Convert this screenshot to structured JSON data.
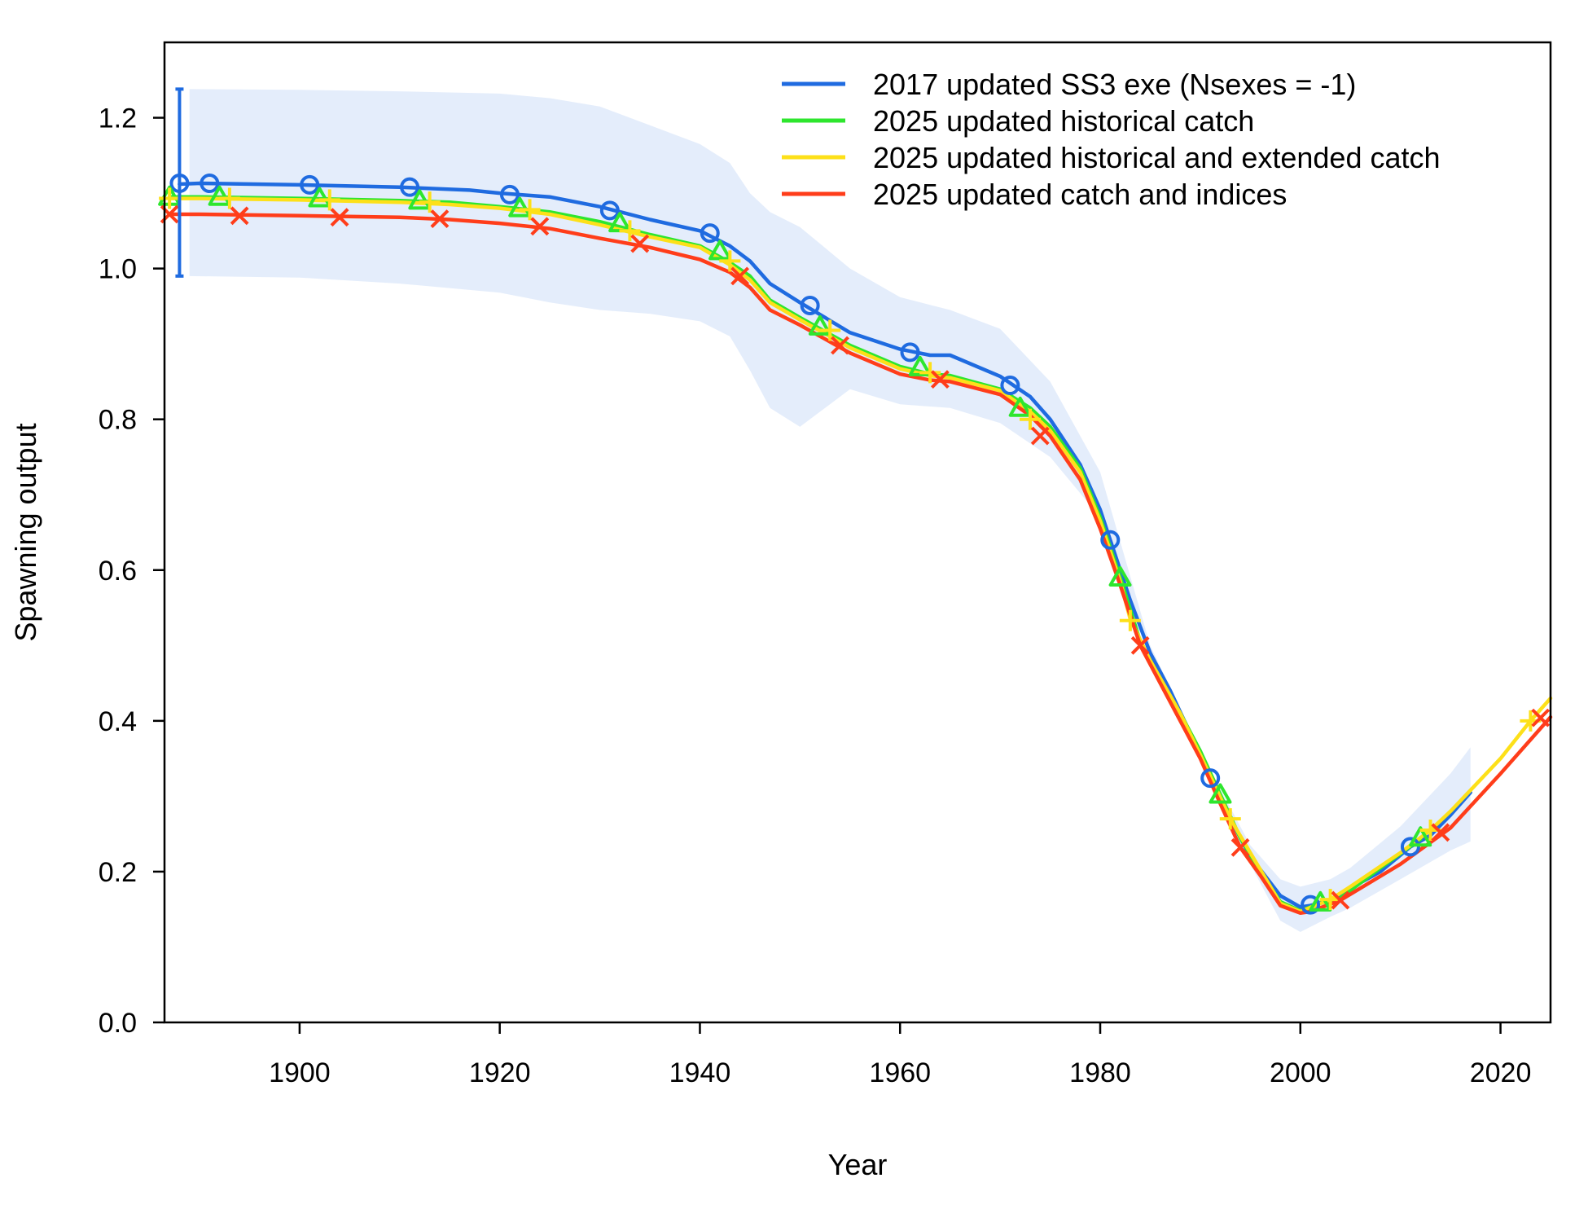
{
  "chart_data": {
    "type": "line",
    "title": "",
    "xlabel": "Year",
    "ylabel": "Spawning output",
    "xlim": [
      1886.5,
      2025
    ],
    "ylim": [
      0,
      1.3
    ],
    "grid": false,
    "legend_position": "top-right",
    "x_ticks": [
      1900,
      1920,
      1940,
      1960,
      1980,
      2000,
      2020
    ],
    "x_tick_labels": [
      "1900",
      "1920",
      "1940",
      "1960",
      "1980",
      "2000",
      "2020"
    ],
    "y_ticks": [
      0,
      0.2,
      0.4,
      0.6,
      0.8,
      1.0,
      1.2
    ],
    "y_tick_labels": [
      "0.0",
      "0.2",
      "0.4",
      "0.6",
      "0.8",
      "1.0",
      "1.2"
    ],
    "series": [
      {
        "name": "2017 updated SS3 exe (Nsexes = -1)",
        "color": "#1f6be0",
        "marker": "circle",
        "x": [
          1888,
          1890,
          1900,
          1910,
          1917,
          1920,
          1925,
          1930,
          1935,
          1940,
          1943,
          1945,
          1947,
          1950,
          1955,
          1960,
          1963,
          1965,
          1970,
          1973,
          1975,
          1978,
          1980,
          1981,
          1983,
          1985,
          1987,
          1990,
          1991,
          1993,
          1995,
          1998,
          2000,
          2001,
          2003,
          2005,
          2008,
          2010,
          2011,
          2013,
          2015,
          2017
        ],
        "y": [
          1.112,
          1.113,
          1.111,
          1.108,
          1.104,
          1.1,
          1.095,
          1.082,
          1.065,
          1.05,
          1.03,
          1.01,
          0.98,
          0.955,
          0.915,
          0.893,
          0.885,
          0.885,
          0.857,
          0.83,
          0.8,
          0.74,
          0.68,
          0.64,
          0.56,
          0.49,
          0.44,
          0.355,
          0.325,
          0.27,
          0.22,
          0.168,
          0.153,
          0.155,
          0.162,
          0.178,
          0.2,
          0.222,
          0.233,
          0.248,
          0.275,
          0.305
        ],
        "marker_x": [
          1888,
          1891,
          1901,
          1911,
          1921,
          1931,
          1941,
          1951,
          1961,
          1971,
          1981,
          1991,
          2001,
          2011
        ],
        "marker_y": [
          1.113,
          1.113,
          1.111,
          1.108,
          1.098,
          1.077,
          1.047,
          0.951,
          0.889,
          0.845,
          0.64,
          0.324,
          0.156,
          0.233
        ],
        "uncertainty": {
          "x": [
            1889,
            1900,
            1910,
            1920,
            1925,
            1930,
            1935,
            1940,
            1943,
            1945,
            1947,
            1950,
            1955,
            1960,
            1965,
            1970,
            1975,
            1980,
            1985,
            1990,
            1995,
            1998,
            2000,
            2003,
            2005,
            2010,
            2015,
            2017
          ],
          "lower": [
            0.99,
            0.988,
            0.98,
            0.968,
            0.955,
            0.945,
            0.94,
            0.93,
            0.91,
            0.865,
            0.815,
            0.79,
            0.84,
            0.82,
            0.815,
            0.795,
            0.75,
            0.67,
            0.49,
            0.35,
            0.21,
            0.135,
            0.12,
            0.14,
            0.152,
            0.19,
            0.228,
            0.24
          ],
          "upper": [
            1.238,
            1.237,
            1.235,
            1.232,
            1.226,
            1.215,
            1.19,
            1.165,
            1.14,
            1.1,
            1.075,
            1.055,
            1.0,
            0.962,
            0.945,
            0.92,
            0.85,
            0.73,
            0.5,
            0.36,
            0.235,
            0.19,
            0.18,
            0.19,
            0.205,
            0.26,
            0.33,
            0.365
          ]
        },
        "start_error_bar": {
          "x": 1888,
          "low": 0.99,
          "high": 1.238
        }
      },
      {
        "name": "2025 updated historical catch",
        "color": "#2ee62e",
        "marker": "triangle",
        "x": [
          1887,
          1890,
          1900,
          1910,
          1915,
          1920,
          1925,
          1930,
          1935,
          1940,
          1943,
          1945,
          1947,
          1950,
          1955,
          1960,
          1963,
          1965,
          1970,
          1973,
          1975,
          1978,
          1980,
          1982,
          1984,
          1986,
          1988,
          1990,
          1992,
          1994,
          1996,
          1998,
          2000,
          2002,
          2004,
          2008,
          2012
        ],
        "y": [
          1.095,
          1.095,
          1.093,
          1.09,
          1.088,
          1.082,
          1.075,
          1.062,
          1.045,
          1.03,
          1.008,
          0.99,
          0.958,
          0.935,
          0.898,
          0.87,
          0.86,
          0.858,
          0.84,
          0.815,
          0.79,
          0.735,
          0.67,
          0.59,
          0.505,
          0.455,
          0.41,
          0.36,
          0.302,
          0.245,
          0.2,
          0.16,
          0.148,
          0.158,
          0.165,
          0.205,
          0.243
        ],
        "marker_x": [
          1887,
          1892,
          1902,
          1912,
          1922,
          1932,
          1942,
          1952,
          1962,
          1972,
          1982,
          1992,
          2002,
          2012
        ],
        "marker_y": [
          1.095,
          1.095,
          1.093,
          1.09,
          1.08,
          1.06,
          1.023,
          0.923,
          0.869,
          0.815,
          0.59,
          0.302,
          0.159,
          0.245
        ]
      },
      {
        "name": "2025 updated historical and extended catch",
        "color": "#fde019",
        "marker": "plus",
        "x": [
          1887,
          1890,
          1900,
          1910,
          1915,
          1920,
          1925,
          1930,
          1935,
          1940,
          1943,
          1945,
          1947,
          1950,
          1955,
          1960,
          1963,
          1965,
          1970,
          1973,
          1975,
          1978,
          1980,
          1982,
          1983,
          1985,
          1988,
          1990,
          1993,
          1995,
          1998,
          2000,
          2003,
          2005,
          2010,
          2013,
          2015,
          2020,
          2023,
          2025
        ],
        "y": [
          1.093,
          1.093,
          1.091,
          1.088,
          1.085,
          1.08,
          1.072,
          1.058,
          1.042,
          1.028,
          1.005,
          0.985,
          0.955,
          0.932,
          0.895,
          0.867,
          0.858,
          0.855,
          0.838,
          0.81,
          0.785,
          0.73,
          0.665,
          0.585,
          0.535,
          0.48,
          0.41,
          0.355,
          0.27,
          0.225,
          0.158,
          0.147,
          0.163,
          0.18,
          0.225,
          0.255,
          0.28,
          0.35,
          0.4,
          0.43
        ],
        "marker_x": [
          1887,
          1893,
          1903,
          1913,
          1923,
          1933,
          1943,
          1953,
          1963,
          1973,
          1983,
          1993,
          2003,
          2013,
          2023
        ],
        "marker_y": [
          1.093,
          1.093,
          1.091,
          1.088,
          1.078,
          1.05,
          1.01,
          0.918,
          0.862,
          0.8,
          0.533,
          0.27,
          0.163,
          0.255,
          0.4
        ]
      },
      {
        "name": "2025 updated catch and indices",
        "color": "#ff3d1a",
        "marker": "x",
        "x": [
          1887,
          1890,
          1900,
          1910,
          1915,
          1920,
          1925,
          1930,
          1935,
          1940,
          1943,
          1945,
          1947,
          1950,
          1955,
          1960,
          1963,
          1965,
          1970,
          1973,
          1975,
          1978,
          1980,
          1982,
          1984,
          1986,
          1988,
          1990,
          1992,
          1994,
          1996,
          1998,
          2000,
          2001,
          2004,
          2010,
          2015,
          2020,
          2025
        ],
        "y": [
          1.072,
          1.072,
          1.07,
          1.068,
          1.065,
          1.06,
          1.053,
          1.04,
          1.028,
          1.012,
          0.995,
          0.975,
          0.945,
          0.925,
          0.888,
          0.86,
          0.852,
          0.85,
          0.833,
          0.805,
          0.778,
          0.72,
          0.655,
          0.58,
          0.5,
          0.45,
          0.4,
          0.35,
          0.29,
          0.232,
          0.195,
          0.155,
          0.145,
          0.147,
          0.162,
          0.21,
          0.258,
          0.33,
          0.405
        ],
        "marker_x": [
          1887,
          1894,
          1904,
          1914,
          1924,
          1934,
          1944,
          1954,
          1964,
          1974,
          1984,
          1994,
          2004,
          2014,
          2024
        ],
        "marker_y": [
          1.072,
          1.07,
          1.068,
          1.066,
          1.056,
          1.033,
          0.99,
          0.898,
          0.853,
          0.778,
          0.5,
          0.232,
          0.162,
          0.252,
          0.404
        ]
      }
    ]
  }
}
